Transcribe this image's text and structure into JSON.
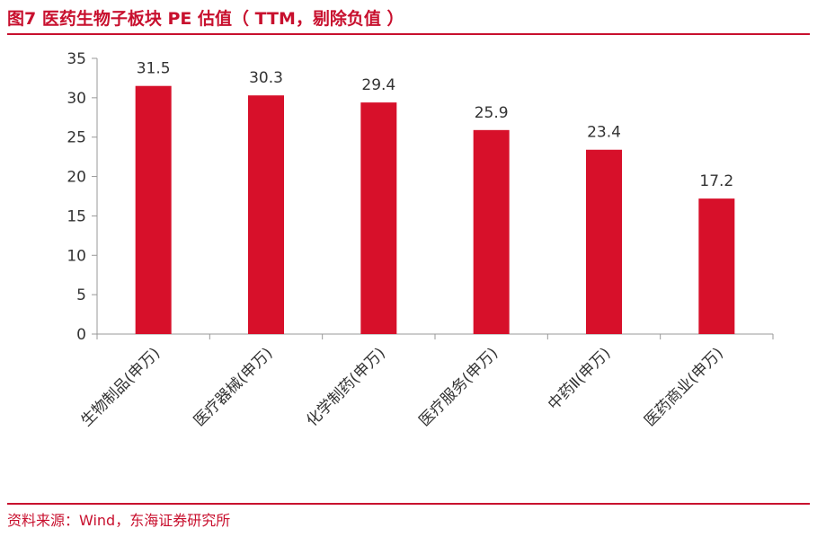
{
  "figure": {
    "title": "图7   医药生物子板块 PE 估值（ TTM，剔除负值 ）",
    "source": "资料来源：Wind，东海证券研究所"
  },
  "colors": {
    "accent": "#c8102e",
    "bar": "#d7102a",
    "axis": "#999999"
  },
  "chart_data": {
    "type": "bar",
    "categories": [
      "生物制品(申万)",
      "医疗器械(申万)",
      "化学制药(申万)",
      "医疗服务(申万)",
      "中药Ⅱ(申万)",
      "医药商业(申万)"
    ],
    "values": [
      31.5,
      30.3,
      29.4,
      25.9,
      23.4,
      17.2
    ],
    "value_labels": [
      "31.5",
      "30.3",
      "29.4",
      "25.9",
      "23.4",
      "17.2"
    ],
    "yticks": [
      "0",
      "5",
      "10",
      "15",
      "20",
      "25",
      "30",
      "35"
    ],
    "ylim": [
      0,
      35
    ],
    "grid": false,
    "legend": "none"
  }
}
